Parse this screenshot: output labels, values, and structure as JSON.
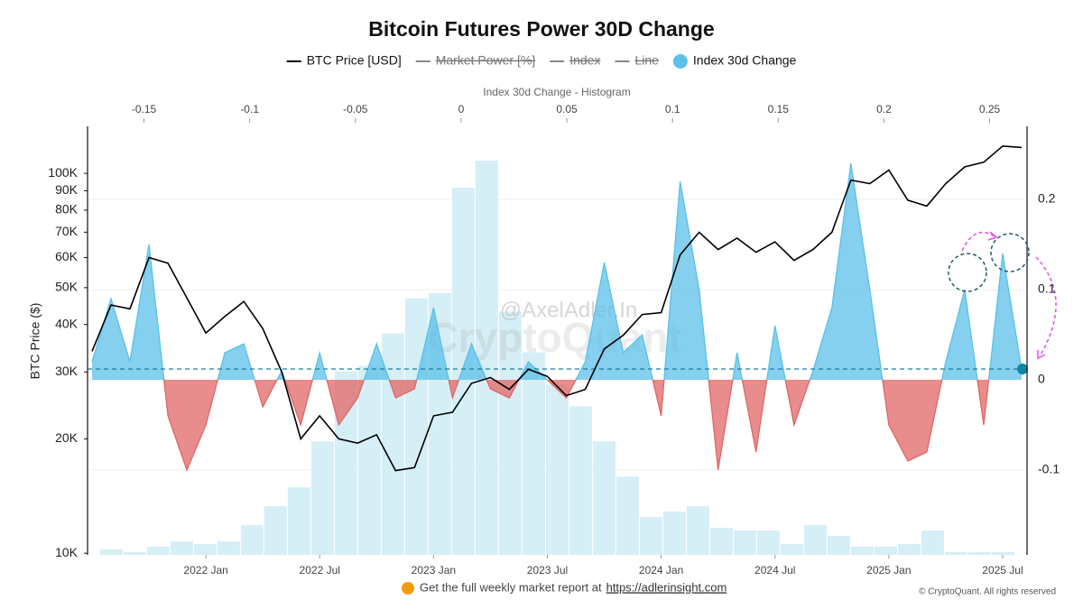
{
  "chart_data": {
    "type": "combo",
    "title": "Bitcoin Futures Power 30D Change",
    "watermark": [
      "@AxelAdler.In",
      "CryptoQuant"
    ],
    "hidden_series": [
      {
        "name": "Market Power [%]",
        "color": "#888888"
      },
      {
        "name": "Index",
        "color": "#888888"
      },
      {
        "name": "Line",
        "color": "#888888"
      }
    ],
    "x": [
      "2021-07",
      "2021-08",
      "2021-09",
      "2021-10",
      "2021-11",
      "2021-12",
      "2022-01",
      "2022-02",
      "2022-03",
      "2022-04",
      "2022-05",
      "2022-06",
      "2022-07",
      "2022-08",
      "2022-09",
      "2022-10",
      "2022-11",
      "2022-12",
      "2023-01",
      "2023-02",
      "2023-03",
      "2023-04",
      "2023-05",
      "2023-06",
      "2023-07",
      "2023-08",
      "2023-09",
      "2023-10",
      "2023-11",
      "2023-12",
      "2024-01",
      "2024-02",
      "2024-03",
      "2024-04",
      "2024-05",
      "2024-06",
      "2024-07",
      "2024-08",
      "2024-09",
      "2024-10",
      "2024-11",
      "2024-12",
      "2025-01",
      "2025-02",
      "2025-03",
      "2025-04",
      "2025-05",
      "2025-06",
      "2025-07",
      "2025-08"
    ],
    "xlim": [
      "2021-07",
      "2025-08"
    ],
    "xticks": [
      {
        "value": "2022-01",
        "label": "2022 Jan"
      },
      {
        "value": "2022-07",
        "label": "2022 Jul"
      },
      {
        "value": "2023-01",
        "label": "2023 Jan"
      },
      {
        "value": "2023-07",
        "label": "2023 Jul"
      },
      {
        "value": "2024-01",
        "label": "2024 Jan"
      },
      {
        "value": "2024-07",
        "label": "2024 Jul"
      },
      {
        "value": "2025-01",
        "label": "2025 Jan"
      },
      {
        "value": "2025-07",
        "label": "2025 Jul"
      }
    ],
    "ylabel": "BTC Price ($)",
    "log_y": true,
    "ylim": [
      9900,
      133000
    ],
    "yticks": [
      {
        "value": 10000,
        "label": "10K"
      },
      {
        "value": 20000,
        "label": "20K"
      },
      {
        "value": 30000,
        "label": "30K"
      },
      {
        "value": 40000,
        "label": "40K"
      },
      {
        "value": 50000,
        "label": "50K"
      },
      {
        "value": 60000,
        "label": "60K"
      },
      {
        "value": 70000,
        "label": "70K"
      },
      {
        "value": 80000,
        "label": "80K"
      },
      {
        "value": 90000,
        "label": "90K"
      },
      {
        "value": 100000,
        "label": "100K"
      }
    ],
    "y2lim": [
      -0.194,
      0.281
    ],
    "y2ticks": [
      -0.1,
      0,
      0.1,
      0.2
    ],
    "grid": true,
    "series": [
      {
        "name": "BTC Price [USD]",
        "type": "line",
        "color": "#000000",
        "values": [
          34000,
          45000,
          44000,
          60000,
          58000,
          47000,
          38000,
          42000,
          46000,
          39000,
          30000,
          20000,
          23000,
          20000,
          19500,
          20500,
          16500,
          16800,
          23000,
          23500,
          28000,
          29000,
          27000,
          30500,
          29200,
          26000,
          27000,
          34500,
          37500,
          42500,
          43000,
          61000,
          70000,
          63000,
          67500,
          62000,
          66000,
          59000,
          63000,
          70000,
          96000,
          94000,
          102000,
          85000,
          82000,
          94000,
          104000,
          107000,
          118000,
          117000
        ]
      },
      {
        "name": "Index 30d Change",
        "type": "area",
        "axis": "y2",
        "color": "#5bc0e8",
        "negative_color": "#e06666",
        "values": [
          0.02,
          0.09,
          0.02,
          0.15,
          -0.04,
          -0.1,
          -0.05,
          0.03,
          0.04,
          -0.03,
          0.01,
          -0.05,
          0.03,
          -0.05,
          -0.02,
          0.04,
          -0.02,
          -0.01,
          0.08,
          -0.02,
          0.04,
          -0.01,
          -0.02,
          0.02,
          0,
          -0.02,
          0.02,
          0.13,
          0.03,
          0.05,
          -0.04,
          0.22,
          0.1,
          -0.1,
          0.03,
          -0.08,
          0.06,
          -0.05,
          0.01,
          0.08,
          0.24,
          0.1,
          -0.05,
          -0.09,
          -0.08,
          0.02,
          0.1,
          -0.05,
          0.14,
          0.012
        ]
      }
    ],
    "histogram": {
      "title": "Index 30d Change - Histogram",
      "color": "#d6eef6",
      "xlim": [
        -0.1767,
        0.2677
      ],
      "xticks": [
        -0.15,
        -0.1,
        -0.05,
        0,
        0.05,
        0.1,
        0.15,
        0.2,
        0.25
      ],
      "bins": [
        -0.171,
        -0.1599,
        -0.1488,
        -0.1377,
        -0.1266,
        -0.1155,
        -0.1044,
        -0.0933,
        -0.0822,
        -0.0711,
        -0.06,
        -0.0489,
        -0.0378,
        -0.0267,
        -0.0156,
        -0.0045,
        0.0066,
        0.0177,
        0.0288,
        0.0399,
        0.051,
        0.0621,
        0.0732,
        0.0843,
        0.0954,
        0.1065,
        0.1176,
        0.1287,
        0.1398,
        0.1509,
        0.162,
        0.1731,
        0.1842,
        0.1953,
        0.2064,
        0.2175,
        0.2286,
        0.2397,
        0.2508,
        0.2619
      ],
      "counts": [
        2,
        1,
        3,
        5,
        4,
        5,
        11,
        18,
        25,
        42,
        68,
        70,
        82,
        95,
        97,
        136,
        146,
        90,
        75,
        63,
        55,
        42,
        29,
        14,
        16,
        18,
        10,
        9,
        9,
        4,
        11,
        7,
        3,
        3,
        4,
        9,
        1,
        1,
        1
      ]
    }
  },
  "footer": {
    "text": "Get the full weekly market report at",
    "link": "https://adlerinsight.com",
    "copyright": "© CryptoQuant. All rights reserved"
  }
}
